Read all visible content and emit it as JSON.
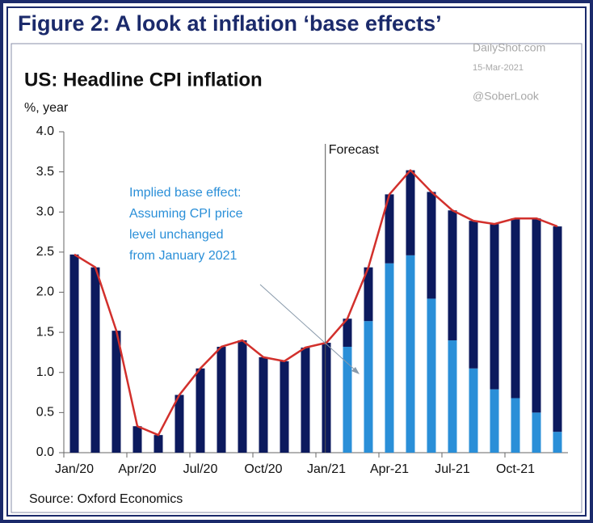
{
  "chart_data": {
    "type": "stacked-bar-line",
    "figure_title": "Figure 2: A look at inflation ‘base effects’",
    "title": "US: Headline CPI inflation",
    "y_label": "%, year",
    "watermark": [
      "DailyShot.com",
      "15-Mar-2021",
      "@SoberLook"
    ],
    "forecast_label": "Forecast",
    "annotation": [
      "Implied base effect:",
      "Assuming CPI price",
      "level unchanged",
      "from January 2021"
    ],
    "source": "Source: Oxford Economics",
    "categories": [
      "Jan/20",
      null,
      null,
      "Apr/20",
      null,
      null,
      "Jul/20",
      null,
      null,
      "Oct/20",
      null,
      null,
      "Jan/21",
      null,
      null,
      "Apr-21",
      null,
      null,
      "Jul-21",
      null,
      null,
      "Oct-21",
      null,
      null
    ],
    "series": [
      {
        "color": "#2a8fd8",
        "values": [
          null,
          null,
          null,
          null,
          null,
          null,
          null,
          null,
          null,
          null,
          null,
          null,
          null,
          1.32,
          1.64,
          2.36,
          2.46,
          1.92,
          1.4,
          1.05,
          0.79,
          0.68,
          0.5,
          0.26
        ]
      },
      {
        "color": "#0c1a5e",
        "values": [
          2.47,
          2.31,
          1.52,
          0.33,
          0.22,
          0.72,
          1.05,
          1.32,
          1.4,
          1.19,
          1.14,
          1.31,
          1.37,
          0.35,
          0.67,
          0.86,
          1.06,
          1.33,
          1.62,
          1.84,
          2.06,
          2.24,
          2.42,
          2.56
        ]
      },
      {
        "type": "line",
        "color": "#d2302c",
        "values": [
          2.47,
          2.31,
          1.52,
          0.33,
          0.22,
          0.72,
          1.05,
          1.32,
          1.4,
          1.19,
          1.14,
          1.31,
          1.37,
          1.67,
          2.31,
          3.22,
          3.52,
          3.25,
          3.02,
          2.89,
          2.85,
          2.92,
          2.92,
          2.82
        ]
      }
    ],
    "ylim": [
      0,
      4
    ],
    "yticks": [
      {
        "value": 0,
        "label": "0.0"
      },
      {
        "value": 0.5,
        "label": "0.5"
      },
      {
        "value": 1,
        "label": "1.0"
      },
      {
        "value": 1.5,
        "label": "1.5"
      },
      {
        "value": 2,
        "label": "2.0"
      },
      {
        "value": 2.5,
        "label": "2.5"
      },
      {
        "value": 3,
        "label": "3.0"
      },
      {
        "value": 3.5,
        "label": "3.5"
      },
      {
        "value": 4,
        "label": "4.0"
      }
    ]
  }
}
